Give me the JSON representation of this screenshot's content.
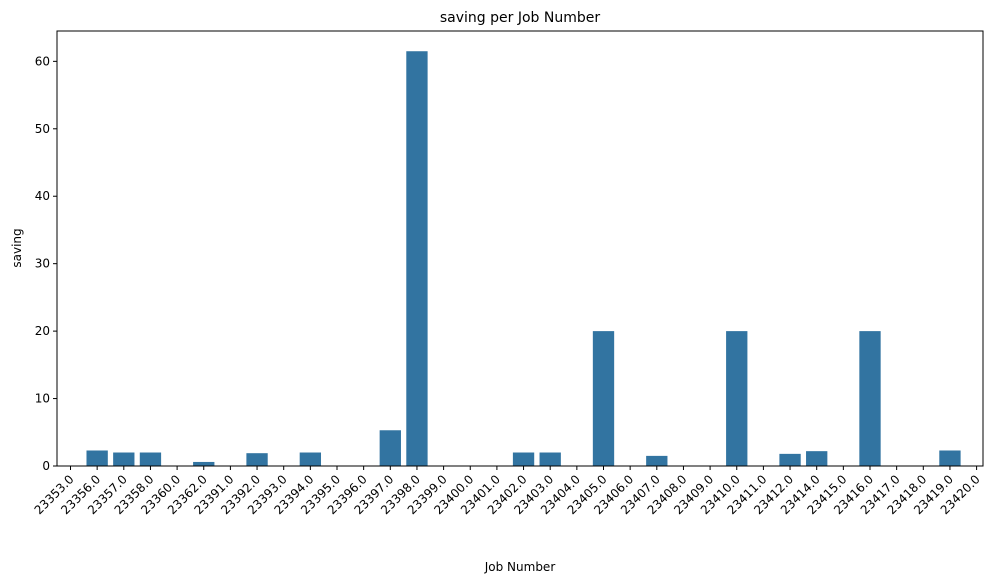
{
  "chart_data": {
    "type": "bar",
    "title": "saving per Job Number",
    "xlabel": "Job Number",
    "ylabel": "saving",
    "ylim": [
      0,
      64.5
    ],
    "yticks": [
      0,
      10,
      20,
      30,
      40,
      50,
      60
    ],
    "grid": false,
    "bar_color": "#3274a1",
    "categories": [
      "23353.0",
      "23356.0",
      "23357.0",
      "23358.0",
      "23360.0",
      "23362.0",
      "23391.0",
      "23392.0",
      "23393.0",
      "23394.0",
      "23395.0",
      "23396.0",
      "23397.0",
      "23398.0",
      "23399.0",
      "23400.0",
      "23401.0",
      "23402.0",
      "23403.0",
      "23404.0",
      "23405.0",
      "23406.0",
      "23407.0",
      "23408.0",
      "23409.0",
      "23410.0",
      "23411.0",
      "23412.0",
      "23414.0",
      "23415.0",
      "23416.0",
      "23417.0",
      "23418.0",
      "23419.0",
      "23420.0"
    ],
    "values": [
      0,
      2.3,
      2.0,
      2.0,
      0,
      0.6,
      0,
      1.9,
      0,
      2.0,
      0,
      0,
      5.3,
      61.5,
      0,
      0,
      0,
      2.0,
      2.0,
      0,
      20.0,
      0,
      1.5,
      0,
      0,
      20.0,
      0,
      1.8,
      2.2,
      0,
      20.0,
      0,
      0,
      2.3,
      0
    ]
  }
}
